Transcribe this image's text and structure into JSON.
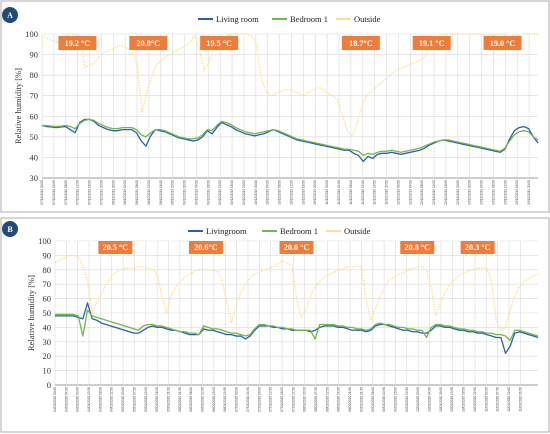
{
  "chart_data": [
    {
      "panel": "A",
      "type": "line",
      "ylabel": "Relative humidity [%]",
      "xlabel": "",
      "ylim": [
        30,
        100
      ],
      "yticks": [
        30,
        40,
        50,
        60,
        70,
        80,
        90,
        100
      ],
      "grid": true,
      "legend_placement": "top-center",
      "colors": {
        "Living room": "#2e5fa8",
        "Bedroom 1": "#70b84a",
        "Outside": "#fbe08f"
      },
      "temperature_labels": [
        {
          "text": "19.2 °C",
          "day": 0
        },
        {
          "text": "20.0°C",
          "day": 1
        },
        {
          "text": "19.5 °C",
          "day": 2
        },
        {
          "text": "18.7°C",
          "day": 4
        },
        {
          "text": "19.1 °C",
          "day": 5
        },
        {
          "text": "19.0 °C",
          "day": 6
        }
      ],
      "x_start": "07/12/2019 00:00",
      "x_end": "13/12/2019 23:00",
      "x_step_hours": 4,
      "x_tick_labels": [
        "07/12/2019 00:00",
        "07/12/2019 04:00",
        "07/12/2019 08:00",
        "07/12/2019 12:00",
        "07/12/2019 16:00",
        "07/12/2019 20:00",
        "08/12/2019 00:00",
        "08/12/2019 04:00",
        "08/12/2019 08:00",
        "08/12/2019 12:00",
        "08/12/2019 16:00",
        "08/12/2019 20:00",
        "09/12/2019 00:00",
        "09/12/2019 04:00",
        "09/12/2019 08:00",
        "09/12/2019 12:00",
        "09/12/2019 16:00",
        "09/12/2019 20:00",
        "10/12/2019 00:00",
        "10/12/2019 04:00",
        "10/12/2019 08:00",
        "10/12/2019 12:00",
        "10/12/2019 16:00",
        "10/12/2019 20:00",
        "11/12/2019 00:00",
        "11/12/2019 04:00",
        "11/12/2019 08:00",
        "11/12/2019 12:00",
        "11/12/2019 16:00",
        "11/12/2019 20:00",
        "12/12/2019 00:00",
        "12/12/2019 04:00",
        "12/12/2019 08:00",
        "12/12/2019 12:00",
        "12/12/2019 16:00",
        "12/12/2019 20:00",
        "13/12/2019 00:00",
        "13/12/2019 04:00",
        "13/12/2019 08:00",
        "13/12/2019 12:00",
        "13/12/2019 16:00",
        "13/12/2019 20:00"
      ],
      "series": [
        {
          "name": "Living room",
          "values": [
            55.5,
            55,
            54.8,
            54.5,
            54.8,
            55,
            53.5,
            52,
            57,
            58.5,
            58.5,
            57.5,
            55.5,
            54.5,
            53.5,
            53,
            53,
            53.5,
            53.5,
            53.5,
            52,
            48,
            45.5,
            50.5,
            53.5,
            53,
            52.5,
            51.5,
            50.5,
            49.5,
            49,
            48.5,
            48,
            48.5,
            50,
            53,
            51.5,
            54.5,
            57,
            56,
            55,
            53.5,
            52.5,
            51.5,
            51,
            50.5,
            51,
            51.5,
            52.5,
            53.5,
            52.5,
            51.5,
            50.5,
            49.5,
            48.5,
            48,
            47.5,
            47,
            46.5,
            46,
            45.5,
            45,
            44.5,
            44,
            43.5,
            43.5,
            42,
            41,
            38,
            40.5,
            39.5,
            41.5,
            42,
            42,
            42.5,
            42,
            41.5,
            42,
            42.5,
            43,
            43.5,
            44.5,
            46,
            47,
            48,
            48.5,
            48,
            47.5,
            47,
            46.5,
            46,
            45.5,
            45,
            44.5,
            44,
            43.5,
            43,
            42.5,
            44,
            49,
            53,
            54.5,
            55,
            54,
            50,
            47
          ]
        },
        {
          "name": "Bedroom 1",
          "values": [
            55.5,
            55.5,
            55.2,
            55,
            55.2,
            55.5,
            55,
            54,
            56.5,
            58,
            58.5,
            58,
            56.5,
            55.5,
            54.5,
            54,
            54,
            54.5,
            54.5,
            54.5,
            53.5,
            51,
            50,
            52,
            53.5,
            53.5,
            53,
            52,
            51,
            50,
            49.5,
            49,
            49,
            49.5,
            51,
            53.5,
            53,
            55.5,
            57.5,
            57,
            56,
            54.5,
            53.5,
            52.5,
            52,
            51.5,
            52,
            52.5,
            53,
            53.5,
            53,
            52,
            51,
            50,
            49,
            48.5,
            48,
            47.5,
            47,
            46.5,
            46,
            45.5,
            45,
            44.5,
            44,
            44,
            43.5,
            43,
            41,
            42,
            41.5,
            42.5,
            43,
            43,
            43.5,
            43,
            42.5,
            43,
            43.5,
            44,
            44.5,
            45.5,
            46.5,
            47.5,
            48,
            48.5,
            48.5,
            48,
            47.5,
            47,
            46.5,
            46,
            45.5,
            45,
            44.5,
            44,
            43.5,
            43,
            44.5,
            48,
            51,
            52.5,
            53,
            52.5,
            50,
            48.5
          ]
        },
        {
          "name": "Outside",
          "values": [
            99,
            98,
            97,
            96,
            97,
            99,
            100,
            100,
            99,
            84,
            85,
            86,
            89,
            91,
            92,
            93,
            94,
            94,
            93,
            92,
            84,
            62,
            72,
            79,
            85,
            87,
            89,
            90,
            92,
            93,
            94,
            96,
            99,
            93,
            82,
            86,
            93,
            95,
            97,
            99,
            100,
            100,
            100,
            100,
            99,
            95,
            78,
            72,
            70,
            71,
            72,
            73,
            73,
            72,
            71,
            70,
            72,
            73,
            74,
            73,
            71,
            70,
            68,
            60,
            53,
            50,
            56,
            64,
            70,
            72,
            74,
            76,
            78,
            80,
            82,
            83,
            84,
            85,
            86,
            87,
            88,
            92,
            96,
            99,
            100,
            100,
            100,
            100,
            100,
            100,
            100,
            100,
            100,
            99,
            100,
            100,
            100,
            100,
            95,
            93,
            97,
            100,
            100,
            100,
            100
          ]
        }
      ]
    },
    {
      "panel": "B",
      "type": "line",
      "ylabel": "Relative humidity [%]",
      "xlabel": "",
      "ylim": [
        0,
        100
      ],
      "yticks": [
        0,
        10,
        20,
        30,
        40,
        50,
        60,
        70,
        80,
        90,
        100
      ],
      "grid": true,
      "legend_placement": "top-center",
      "colors": {
        "Livingroom": "#2e5fa8",
        "Bedroom 1": "#70b84a",
        "Outside": "#fbe08f"
      },
      "temperature_labels": [
        {
          "text": "20.5 °C",
          "day": 0.5
        },
        {
          "text": "20.6°C",
          "day": 2
        },
        {
          "text": "20.0 °C",
          "day": 3.5
        },
        {
          "text": "20.8 °C",
          "day": 5.5
        },
        {
          "text": "20.3 °C",
          "day": 6.5
        }
      ],
      "x_start": "04/01/2020 00:00",
      "x_end": "11/01/2020 23:30",
      "x_step_hours": 4.5,
      "x_tick_labels": [
        "04/01/2020 00:00",
        "04/01/2020 04:30",
        "04/01/2020 09:00",
        "04/01/2020 13:30",
        "04/01/2020 18:00",
        "04/01/2020 22:30",
        "05/01/2020 03:00",
        "05/01/2020 07:30",
        "05/01/2020 12:00",
        "05/01/2020 16:30",
        "05/01/2020 21:00",
        "06/01/2020 01:30",
        "06/01/2020 06:00",
        "06/01/2020 10:30",
        "06/01/2020 15:00",
        "06/01/2020 19:30",
        "07/01/2020 00:00",
        "07/01/2020 04:30",
        "07/01/2020 09:00",
        "07/01/2020 13:30",
        "07/01/2020 18:00",
        "07/01/2020 22:30",
        "08/01/2020 03:00",
        "08/01/2020 07:30",
        "08/01/2020 12:00",
        "08/01/2020 16:30",
        "08/01/2020 21:00",
        "09/01/2020 01:30",
        "09/01/2020 06:00",
        "09/01/2020 10:30",
        "09/01/2020 15:00",
        "09/01/2020 19:30",
        "10/01/2020 00:00",
        "10/01/2020 04:30",
        "10/01/2020 09:00",
        "10/01/2020 13:30",
        "10/01/2020 18:00",
        "10/01/2020 22:30",
        "11/01/2020 03:00",
        "11/01/2020 07:30",
        "11/01/2020 12:00",
        "11/01/2020 16:30"
      ],
      "series": [
        {
          "name": "Livingroom",
          "values": [
            48,
            48,
            48,
            48,
            48,
            47,
            46,
            57,
            46,
            45,
            43,
            42,
            41,
            40,
            39,
            38,
            37,
            36,
            36,
            38,
            40,
            41,
            40,
            40,
            39,
            38,
            38,
            37,
            36,
            35,
            35,
            35,
            39,
            38,
            38,
            37,
            36,
            35,
            35,
            34,
            34,
            32,
            34,
            38,
            41,
            41,
            41,
            40,
            40,
            39,
            39,
            38,
            38,
            38,
            38,
            37,
            38,
            40,
            41,
            41,
            41,
            40,
            40,
            39,
            38,
            38,
            38,
            37,
            38,
            41,
            42,
            42,
            41,
            40,
            39,
            38,
            38,
            37,
            37,
            36,
            36,
            38,
            41,
            41,
            40,
            40,
            39,
            38,
            38,
            37,
            37,
            36,
            36,
            35,
            34,
            33,
            33,
            22,
            27,
            36,
            37,
            36,
            35,
            34,
            33
          ]
        },
        {
          "name": "Bedroom 1",
          "values": [
            49,
            49,
            49,
            49,
            49,
            48,
            34,
            52,
            48,
            47,
            46,
            45,
            44,
            43,
            42,
            41,
            40,
            39,
            38,
            41,
            42,
            42,
            41,
            41,
            40,
            39,
            38,
            37,
            37,
            36,
            36,
            35,
            41,
            40,
            39,
            39,
            38,
            37,
            36,
            36,
            35,
            34,
            35,
            39,
            42,
            42,
            41,
            41,
            40,
            40,
            39,
            39,
            38,
            38,
            38,
            38,
            32,
            42,
            42,
            42,
            42,
            41,
            41,
            40,
            40,
            39,
            39,
            38,
            39,
            42,
            43,
            42,
            42,
            41,
            40,
            40,
            39,
            39,
            38,
            38,
            33,
            40,
            42,
            42,
            41,
            41,
            40,
            39,
            39,
            38,
            38,
            37,
            37,
            36,
            36,
            35,
            35,
            34,
            31,
            38,
            38,
            37,
            36,
            35,
            34
          ]
        },
        {
          "name": "Outside",
          "values": [
            85,
            87,
            88,
            90,
            90,
            89,
            83,
            72,
            50,
            57,
            63,
            70,
            75,
            78,
            80,
            81,
            81,
            81,
            82,
            82,
            81,
            80,
            77,
            62,
            50,
            62,
            68,
            72,
            75,
            77,
            79,
            80,
            80,
            80,
            80,
            79,
            72,
            58,
            43,
            55,
            64,
            70,
            74,
            77,
            78,
            80,
            81,
            82,
            84,
            86,
            85,
            83,
            60,
            47,
            52,
            62,
            68,
            72,
            75,
            77,
            78,
            80,
            81,
            82,
            82,
            83,
            82,
            60,
            45,
            53,
            62,
            68,
            73,
            75,
            77,
            78,
            80,
            81,
            82,
            82,
            80,
            68,
            48,
            57,
            64,
            70,
            73,
            76,
            78,
            79,
            80,
            81,
            81,
            81,
            72,
            45,
            38,
            40,
            52,
            62,
            68,
            72,
            74,
            76,
            77
          ]
        }
      ]
    }
  ]
}
